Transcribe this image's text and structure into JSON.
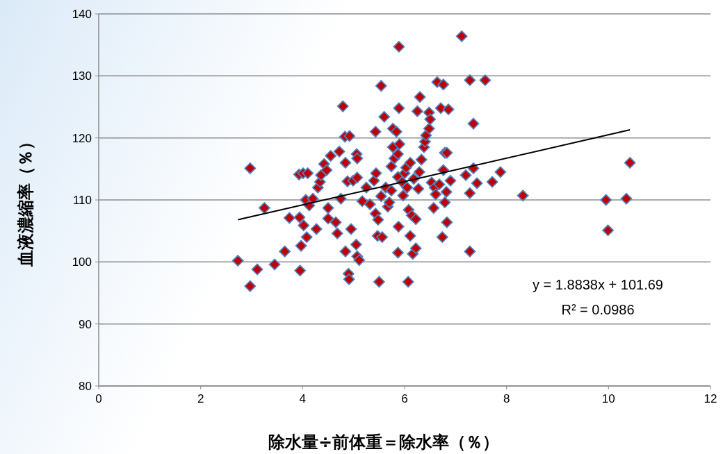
{
  "chart_data": {
    "type": "scatter",
    "xlabel": "除水量÷前体重＝除水率（％）",
    "ylabel": "血液濃縮率（％）",
    "xlim": [
      0,
      12
    ],
    "xticks": [
      0,
      2,
      4,
      6,
      8,
      10,
      12
    ],
    "ylim": [
      80,
      140
    ],
    "yticks": [
      80,
      90,
      100,
      110,
      120,
      130,
      140
    ],
    "grid": "y",
    "annotations": [
      "y = 1.8838x + 101.69",
      "R² = 0.0986"
    ],
    "series": [
      {
        "color": "#c00000",
        "marker": "diamond",
        "x": [
          2.73,
          2.97,
          2.97,
          3.11,
          3.25,
          3.45,
          3.65,
          3.74,
          3.93,
          3.94,
          3.95,
          3.97,
          4.01,
          4.02,
          4.06,
          4.08,
          4.1,
          4.13,
          4.2,
          4.27,
          4.3,
          4.34,
          4.36,
          4.42,
          4.47,
          4.5,
          4.5,
          4.55,
          4.65,
          4.68,
          4.72,
          4.75,
          4.79,
          4.83,
          4.84,
          4.84,
          4.88,
          4.9,
          4.91,
          4.92,
          4.95,
          4.99,
          5.05,
          5.06,
          5.07,
          5.07,
          5.07,
          5.11,
          5.17,
          5.25,
          5.32,
          5.4,
          5.43,
          5.43,
          5.44,
          5.47,
          5.48,
          5.5,
          5.54,
          5.54,
          5.56,
          5.6,
          5.63,
          5.67,
          5.7,
          5.74,
          5.74,
          5.77,
          5.77,
          5.8,
          5.84,
          5.87,
          5.87,
          5.87,
          5.88,
          5.89,
          5.89,
          5.9,
          5.95,
          5.97,
          6.0,
          6.03,
          6.05,
          6.07,
          6.08,
          6.11,
          6.11,
          6.14,
          6.16,
          6.18,
          6.22,
          6.22,
          6.25,
          6.27,
          6.29,
          6.3,
          6.33,
          6.38,
          6.4,
          6.42,
          6.48,
          6.48,
          6.5,
          6.53,
          6.57,
          6.59,
          6.61,
          6.64,
          6.68,
          6.71,
          6.74,
          6.76,
          6.76,
          6.79,
          6.79,
          6.82,
          6.83,
          6.83,
          6.86,
          6.9,
          7.12,
          7.2,
          7.28,
          7.28,
          7.28,
          7.35,
          7.35,
          7.42,
          7.58,
          7.72,
          7.88,
          8.32,
          9.95,
          9.99,
          10.35,
          10.42
        ],
        "values": [
          100.2,
          115.1,
          96.1,
          98.8,
          108.7,
          99.6,
          101.7,
          107.1,
          114.1,
          107.2,
          98.6,
          102.6,
          114.3,
          105.9,
          110.0,
          104.0,
          114.3,
          109.1,
          110.2,
          105.3,
          112.0,
          112.9,
          114.0,
          115.8,
          114.8,
          108.7,
          107.0,
          117.1,
          106.4,
          104.6,
          117.8,
          110.2,
          125.1,
          120.2,
          116.0,
          101.7,
          113.0,
          98.1,
          97.2,
          120.3,
          105.3,
          113.1,
          102.8,
          117.4,
          116.7,
          113.6,
          100.9,
          100.3,
          109.8,
          112.0,
          109.3,
          113.1,
          121.0,
          107.8,
          114.3,
          104.2,
          106.8,
          96.8,
          128.4,
          110.6,
          104.0,
          123.4,
          112.0,
          108.9,
          109.6,
          111.5,
          115.4,
          118.5,
          121.5,
          116.7,
          121.0,
          117.4,
          113.7,
          101.5,
          105.7,
          134.7,
          124.8,
          119.0,
          112.9,
          110.7,
          114.3,
          115.2,
          112.0,
          96.8,
          108.4,
          116.0,
          104.2,
          107.5,
          101.3,
          113.4,
          106.9,
          102.2,
          124.3,
          111.8,
          114.5,
          126.6,
          116.5,
          118.5,
          119.4,
          120.4,
          121.5,
          124.1,
          123.0,
          112.8,
          108.7,
          112.0,
          110.9,
          129.0,
          112.5,
          124.8,
          104.0,
          128.6,
          114.8,
          117.6,
          109.6,
          111.3,
          117.6,
          106.4,
          124.6,
          113.1,
          136.4,
          114.0,
          129.3,
          111.1,
          101.7,
          115.1,
          122.3,
          112.7,
          129.3,
          112.9,
          114.5,
          110.7,
          110.0,
          105.1,
          110.2,
          116.0
        ]
      },
      {
        "type": "line",
        "color": "#000000",
        "x": [
          2.73,
          10.42
        ],
        "values": [
          106.8,
          121.3
        ]
      }
    ]
  }
}
